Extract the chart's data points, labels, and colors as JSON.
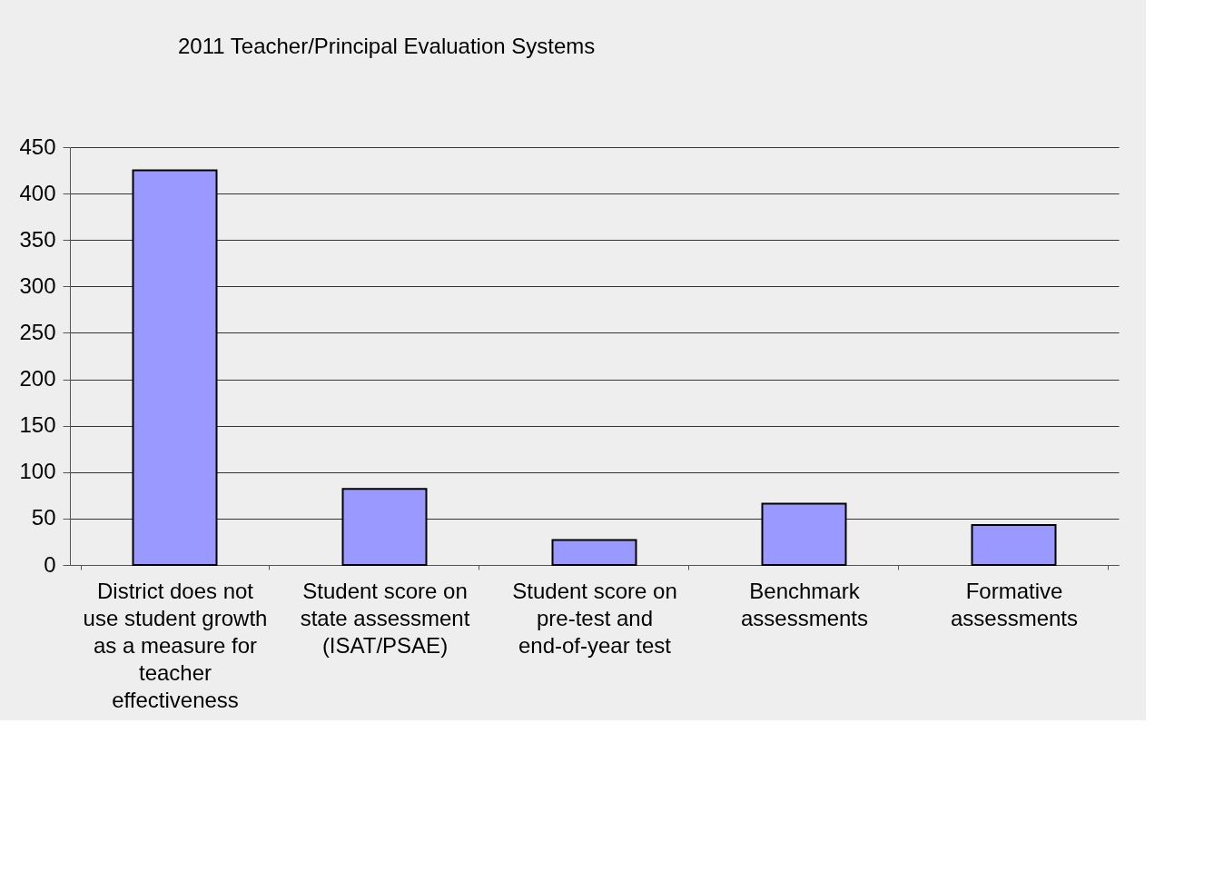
{
  "chart_data": {
    "type": "bar",
    "title": "2011 Teacher/Principal Evaluation Systems",
    "categories": [
      "District does not use student growth as a measure for teacher effectiveness",
      "Student score on state assessment (ISAT/PSAE)",
      "Student score on pre-test and end-of-year test",
      "Benchmark assessments",
      "Formative assessments"
    ],
    "values": [
      425,
      82,
      27,
      66,
      43
    ],
    "color": "#9999ff",
    "ylim": [
      0,
      450
    ],
    "yticks": [
      0,
      50,
      100,
      150,
      200,
      250,
      300,
      350,
      400,
      450
    ],
    "grid": "y"
  }
}
